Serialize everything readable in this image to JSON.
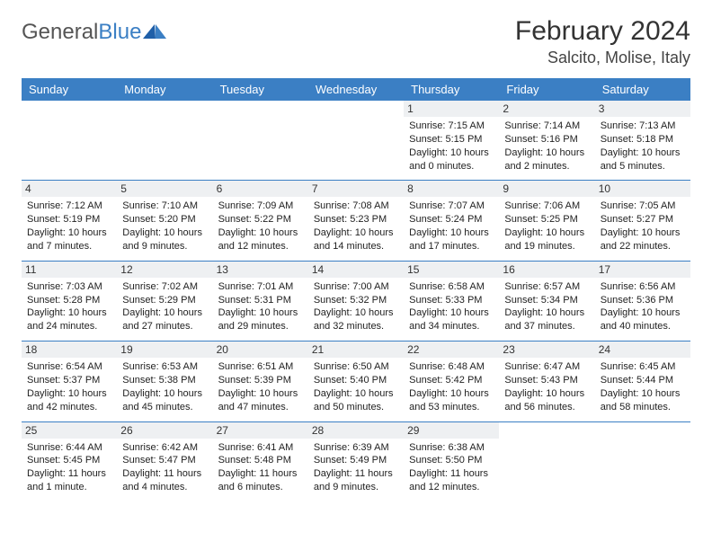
{
  "brand": {
    "name_part1": "General",
    "name_part2": "Blue"
  },
  "header": {
    "month_title": "February 2024",
    "location": "Salcito, Molise, Italy"
  },
  "colors": {
    "header_bg": "#3b7fc4",
    "header_text": "#ffffff",
    "daynum_bg": "#eef0f2",
    "row_border": "#3b7fc4",
    "page_bg": "#ffffff"
  },
  "typography": {
    "month_title_fontsize": 30,
    "location_fontsize": 18,
    "weekday_fontsize": 13,
    "cell_fontsize": 11
  },
  "calendar": {
    "weekdays": [
      "Sunday",
      "Monday",
      "Tuesday",
      "Wednesday",
      "Thursday",
      "Friday",
      "Saturday"
    ],
    "weeks": [
      [
        null,
        null,
        null,
        null,
        {
          "day": "1",
          "sunrise": "Sunrise: 7:15 AM",
          "sunset": "Sunset: 5:15 PM",
          "daylight1": "Daylight: 10 hours",
          "daylight2": "and 0 minutes."
        },
        {
          "day": "2",
          "sunrise": "Sunrise: 7:14 AM",
          "sunset": "Sunset: 5:16 PM",
          "daylight1": "Daylight: 10 hours",
          "daylight2": "and 2 minutes."
        },
        {
          "day": "3",
          "sunrise": "Sunrise: 7:13 AM",
          "sunset": "Sunset: 5:18 PM",
          "daylight1": "Daylight: 10 hours",
          "daylight2": "and 5 minutes."
        }
      ],
      [
        {
          "day": "4",
          "sunrise": "Sunrise: 7:12 AM",
          "sunset": "Sunset: 5:19 PM",
          "daylight1": "Daylight: 10 hours",
          "daylight2": "and 7 minutes."
        },
        {
          "day": "5",
          "sunrise": "Sunrise: 7:10 AM",
          "sunset": "Sunset: 5:20 PM",
          "daylight1": "Daylight: 10 hours",
          "daylight2": "and 9 minutes."
        },
        {
          "day": "6",
          "sunrise": "Sunrise: 7:09 AM",
          "sunset": "Sunset: 5:22 PM",
          "daylight1": "Daylight: 10 hours",
          "daylight2": "and 12 minutes."
        },
        {
          "day": "7",
          "sunrise": "Sunrise: 7:08 AM",
          "sunset": "Sunset: 5:23 PM",
          "daylight1": "Daylight: 10 hours",
          "daylight2": "and 14 minutes."
        },
        {
          "day": "8",
          "sunrise": "Sunrise: 7:07 AM",
          "sunset": "Sunset: 5:24 PM",
          "daylight1": "Daylight: 10 hours",
          "daylight2": "and 17 minutes."
        },
        {
          "day": "9",
          "sunrise": "Sunrise: 7:06 AM",
          "sunset": "Sunset: 5:25 PM",
          "daylight1": "Daylight: 10 hours",
          "daylight2": "and 19 minutes."
        },
        {
          "day": "10",
          "sunrise": "Sunrise: 7:05 AM",
          "sunset": "Sunset: 5:27 PM",
          "daylight1": "Daylight: 10 hours",
          "daylight2": "and 22 minutes."
        }
      ],
      [
        {
          "day": "11",
          "sunrise": "Sunrise: 7:03 AM",
          "sunset": "Sunset: 5:28 PM",
          "daylight1": "Daylight: 10 hours",
          "daylight2": "and 24 minutes."
        },
        {
          "day": "12",
          "sunrise": "Sunrise: 7:02 AM",
          "sunset": "Sunset: 5:29 PM",
          "daylight1": "Daylight: 10 hours",
          "daylight2": "and 27 minutes."
        },
        {
          "day": "13",
          "sunrise": "Sunrise: 7:01 AM",
          "sunset": "Sunset: 5:31 PM",
          "daylight1": "Daylight: 10 hours",
          "daylight2": "and 29 minutes."
        },
        {
          "day": "14",
          "sunrise": "Sunrise: 7:00 AM",
          "sunset": "Sunset: 5:32 PM",
          "daylight1": "Daylight: 10 hours",
          "daylight2": "and 32 minutes."
        },
        {
          "day": "15",
          "sunrise": "Sunrise: 6:58 AM",
          "sunset": "Sunset: 5:33 PM",
          "daylight1": "Daylight: 10 hours",
          "daylight2": "and 34 minutes."
        },
        {
          "day": "16",
          "sunrise": "Sunrise: 6:57 AM",
          "sunset": "Sunset: 5:34 PM",
          "daylight1": "Daylight: 10 hours",
          "daylight2": "and 37 minutes."
        },
        {
          "day": "17",
          "sunrise": "Sunrise: 6:56 AM",
          "sunset": "Sunset: 5:36 PM",
          "daylight1": "Daylight: 10 hours",
          "daylight2": "and 40 minutes."
        }
      ],
      [
        {
          "day": "18",
          "sunrise": "Sunrise: 6:54 AM",
          "sunset": "Sunset: 5:37 PM",
          "daylight1": "Daylight: 10 hours",
          "daylight2": "and 42 minutes."
        },
        {
          "day": "19",
          "sunrise": "Sunrise: 6:53 AM",
          "sunset": "Sunset: 5:38 PM",
          "daylight1": "Daylight: 10 hours",
          "daylight2": "and 45 minutes."
        },
        {
          "day": "20",
          "sunrise": "Sunrise: 6:51 AM",
          "sunset": "Sunset: 5:39 PM",
          "daylight1": "Daylight: 10 hours",
          "daylight2": "and 47 minutes."
        },
        {
          "day": "21",
          "sunrise": "Sunrise: 6:50 AM",
          "sunset": "Sunset: 5:40 PM",
          "daylight1": "Daylight: 10 hours",
          "daylight2": "and 50 minutes."
        },
        {
          "day": "22",
          "sunrise": "Sunrise: 6:48 AM",
          "sunset": "Sunset: 5:42 PM",
          "daylight1": "Daylight: 10 hours",
          "daylight2": "and 53 minutes."
        },
        {
          "day": "23",
          "sunrise": "Sunrise: 6:47 AM",
          "sunset": "Sunset: 5:43 PM",
          "daylight1": "Daylight: 10 hours",
          "daylight2": "and 56 minutes."
        },
        {
          "day": "24",
          "sunrise": "Sunrise: 6:45 AM",
          "sunset": "Sunset: 5:44 PM",
          "daylight1": "Daylight: 10 hours",
          "daylight2": "and 58 minutes."
        }
      ],
      [
        {
          "day": "25",
          "sunrise": "Sunrise: 6:44 AM",
          "sunset": "Sunset: 5:45 PM",
          "daylight1": "Daylight: 11 hours",
          "daylight2": "and 1 minute."
        },
        {
          "day": "26",
          "sunrise": "Sunrise: 6:42 AM",
          "sunset": "Sunset: 5:47 PM",
          "daylight1": "Daylight: 11 hours",
          "daylight2": "and 4 minutes."
        },
        {
          "day": "27",
          "sunrise": "Sunrise: 6:41 AM",
          "sunset": "Sunset: 5:48 PM",
          "daylight1": "Daylight: 11 hours",
          "daylight2": "and 6 minutes."
        },
        {
          "day": "28",
          "sunrise": "Sunrise: 6:39 AM",
          "sunset": "Sunset: 5:49 PM",
          "daylight1": "Daylight: 11 hours",
          "daylight2": "and 9 minutes."
        },
        {
          "day": "29",
          "sunrise": "Sunrise: 6:38 AM",
          "sunset": "Sunset: 5:50 PM",
          "daylight1": "Daylight: 11 hours",
          "daylight2": "and 12 minutes."
        },
        null,
        null
      ]
    ]
  }
}
